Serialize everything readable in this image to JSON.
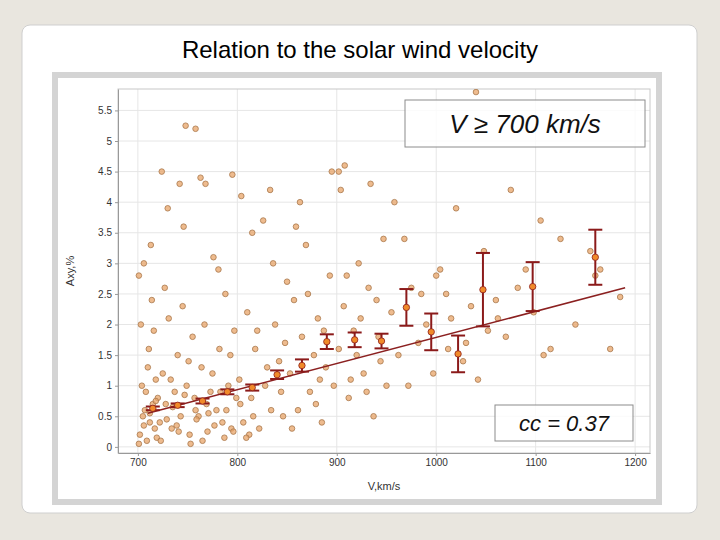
{
  "chart_data": {
    "type": "scatter",
    "title": "Relation to the solar wind velocity",
    "x_label": "V,km/s",
    "y_label": "Axy,%",
    "annotations": [
      "V ≥ 700 km/s",
      "cc = 0.37"
    ],
    "xlim": [
      680,
      1215
    ],
    "ylim": [
      -0.1,
      5.85
    ],
    "xticks": [
      700,
      800,
      900,
      1000,
      1100,
      1200
    ],
    "yticks": [
      0,
      0.5,
      1,
      1.5,
      2,
      2.5,
      3,
      3.5,
      4,
      4.5,
      5,
      5.5
    ],
    "grid": true,
    "series": [
      {
        "type": "scatter",
        "marker": "circle",
        "color": "#e8a468",
        "x": [
          702,
          705,
          708,
          710,
          712,
          715,
          718,
          703,
          706,
          709,
          711,
          714,
          717,
          720,
          704,
          707,
          713,
          716,
          719,
          701,
          722,
          725,
          728,
          731,
          734,
          737,
          740,
          743,
          746,
          749,
          752,
          755,
          758,
          724,
          727,
          733,
          739,
          745,
          751,
          757,
          761,
          764,
          767,
          770,
          773,
          776,
          779,
          782,
          785,
          788,
          791,
          794,
          797,
          763,
          769,
          775,
          781,
          787,
          793,
          799,
          802,
          806,
          810,
          814,
          818,
          822,
          826,
          830,
          834,
          838,
          842,
          846,
          850,
          804,
          812,
          820,
          828,
          836,
          844,
          848,
          853,
          857,
          861,
          865,
          869,
          873,
          877,
          881,
          885,
          889,
          893,
          897,
          855,
          863,
          871,
          879,
          887,
          895,
          859,
          883,
          902,
          907,
          912,
          917,
          922,
          927,
          932,
          937,
          942,
          947,
          904,
          914,
          924,
          934,
          944,
          910,
          930,
          920,
          940,
          950,
          955,
          962,
          968,
          975,
          982,
          990,
          997,
          1004,
          1012,
          1020,
          1027,
          1035,
          1042,
          1048,
          958,
          972,
          985,
          1000,
          1015,
          1030,
          1060,
          1075,
          1090,
          1105,
          1115,
          1140,
          1155,
          1160,
          1175,
          1185,
          1070,
          1098,
          1125,
          1165,
          1082,
          1052,
          1062,
          1108,
          1040,
          1010,
          748,
          758,
          768,
          902,
          908,
          742,
          730,
          795,
          815,
          833,
          701,
          706,
          712,
          718,
          723,
          729,
          735,
          741,
          747,
          753,
          759,
          765,
          771,
          777,
          783,
          789,
          796,
          803,
          809,
          816
        ],
        "values": [
          0.2,
          0.5,
          0.9,
          1.3,
          0.4,
          0.7,
          1.1,
          2.0,
          3.0,
          0.1,
          1.6,
          2.4,
          0.3,
          0.8,
          1.0,
          0.6,
          3.3,
          1.9,
          0.15,
          2.8,
          0.4,
          1.2,
          0.7,
          2.1,
          0.3,
          0.9,
          1.5,
          0.5,
          3.6,
          1.0,
          0.2,
          1.8,
          0.6,
          4.5,
          2.6,
          1.1,
          0.35,
          2.3,
          1.4,
          0.8,
          0.5,
          1.3,
          2.0,
          0.25,
          0.9,
          3.1,
          0.6,
          1.6,
          0.4,
          2.5,
          1.0,
          0.3,
          1.9,
          4.4,
          0.7,
          1.2,
          2.9,
          0.15,
          1.5,
          0.8,
          1.1,
          0.4,
          2.2,
          0.8,
          1.6,
          0.3,
          3.7,
          1.3,
          0.6,
          2.0,
          1.4,
          0.5,
          2.7,
          4.1,
          0.2,
          1.9,
          1.0,
          3.0,
          0.9,
          1.7,
          1.2,
          2.4,
          0.6,
          1.8,
          3.3,
          0.9,
          1.5,
          2.1,
          0.4,
          1.3,
          2.8,
          1.0,
          0.3,
          4.0,
          2.5,
          0.7,
          1.9,
          4.5,
          3.6,
          1.1,
          1.6,
          2.3,
          0.8,
          1.9,
          3.0,
          1.2,
          2.6,
          0.5,
          1.8,
          3.4,
          4.2,
          1.1,
          2.1,
          4.3,
          1.4,
          2.8,
          0.9,
          1.5,
          2.4,
          1.0,
          2.2,
          1.5,
          3.4,
          2.6,
          1.7,
          2.0,
          1.2,
          2.9,
          1.6,
          3.9,
          1.4,
          2.3,
          1.1,
          3.2,
          4.0,
          1.0,
          2.5,
          2.8,
          2.1,
          1.7,
          2.4,
          4.2,
          2.9,
          3.7,
          1.6,
          2.0,
          3.2,
          2.8,
          1.6,
          2.45,
          1.8,
          2.2,
          3.4,
          2.9,
          2.6,
          1.9,
          2.1,
          1.5,
          5.8,
          2.5,
          5.25,
          5.2,
          4.3,
          4.5,
          4.6,
          4.3,
          3.9,
          4.45,
          3.5,
          4.2,
          0.05,
          0.35,
          0.55,
          0.75,
          0.1,
          0.45,
          0.65,
          0.25,
          0.85,
          0.05,
          0.45,
          0.1,
          0.55,
          0.35,
          0.9,
          0.6,
          0.25,
          0.7,
          0.15,
          0.5
        ]
      },
      {
        "type": "errorbar",
        "marker": "circle",
        "color": "#8b1a1a",
        "x": [
          715,
          740,
          765,
          790,
          815,
          840,
          865,
          890,
          918,
          945,
          970,
          995,
          1022,
          1047,
          1097,
          1160
        ],
        "values": [
          0.63,
          0.68,
          0.75,
          0.9,
          0.97,
          1.18,
          1.33,
          1.72,
          1.75,
          1.73,
          2.28,
          1.88,
          1.52,
          2.57,
          2.62,
          3.1
        ],
        "errors": [
          0.03,
          0.03,
          0.04,
          0.04,
          0.05,
          0.07,
          0.1,
          0.12,
          0.12,
          0.12,
          0.3,
          0.3,
          0.3,
          0.6,
          0.4,
          0.45
        ]
      },
      {
        "type": "line",
        "line_style": "solid",
        "color": "#8b2020",
        "x": [
          710,
          1190
        ],
        "values": [
          0.55,
          2.6
        ]
      }
    ]
  }
}
